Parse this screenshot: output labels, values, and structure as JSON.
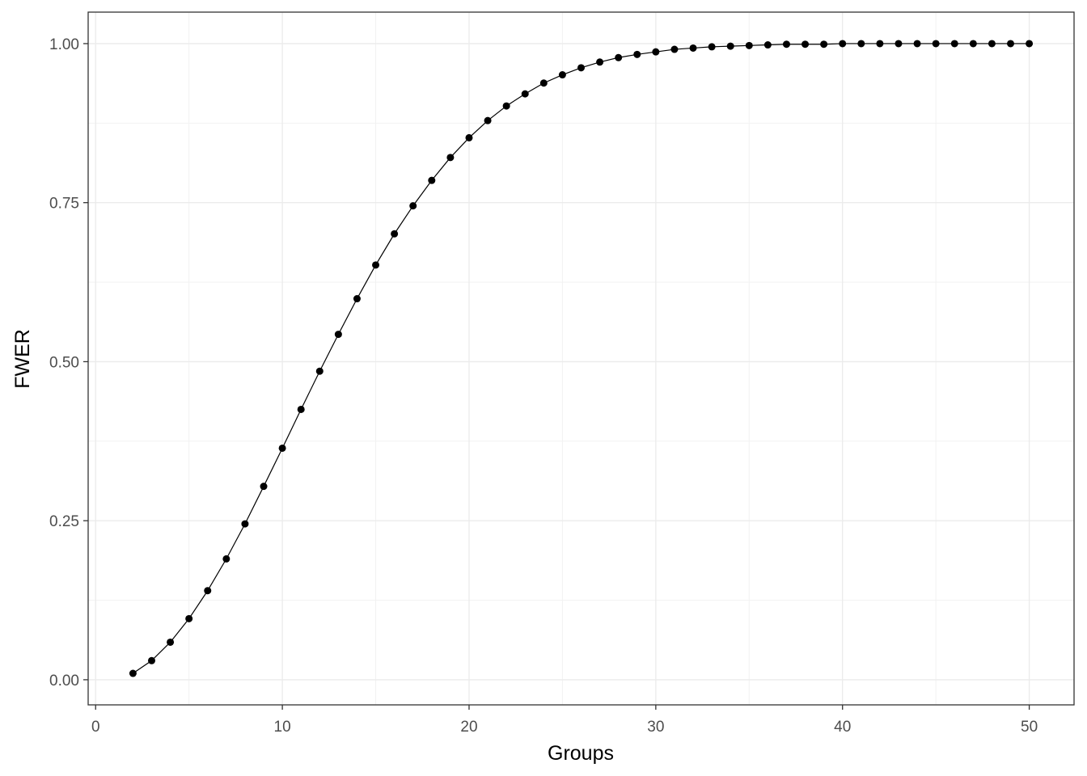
{
  "chart_data": {
    "type": "line",
    "x_label": "Groups",
    "y_label": "FWER",
    "x": [
      2,
      3,
      4,
      5,
      6,
      7,
      8,
      9,
      10,
      11,
      12,
      13,
      14,
      15,
      16,
      17,
      18,
      19,
      20,
      21,
      22,
      23,
      24,
      25,
      26,
      27,
      28,
      29,
      30,
      31,
      32,
      33,
      34,
      35,
      36,
      37,
      38,
      39,
      40,
      41,
      42,
      43,
      44,
      45,
      46,
      47,
      48,
      49,
      50
    ],
    "series": [
      {
        "name": "FWER",
        "color": "#000000",
        "values": [
          0.01,
          0.03,
          0.059,
          0.096,
          0.14,
          0.19,
          0.245,
          0.304,
          0.364,
          0.425,
          0.485,
          0.543,
          0.599,
          0.652,
          0.701,
          0.745,
          0.785,
          0.821,
          0.852,
          0.879,
          0.902,
          0.921,
          0.938,
          0.951,
          0.962,
          0.971,
          0.978,
          0.983,
          0.987,
          0.991,
          0.993,
          0.995,
          0.996,
          0.997,
          0.998,
          0.999,
          0.999,
          0.999,
          1.0,
          1.0,
          1.0,
          1.0,
          1.0,
          1.0,
          1.0,
          1.0,
          1.0,
          1.0,
          1.0
        ]
      }
    ],
    "xlim": [
      -0.4,
      52.4
    ],
    "ylim": [
      -0.0395,
      1.0495
    ],
    "xticks": [
      0,
      10,
      20,
      30,
      40,
      50
    ],
    "yticks": [
      {
        "value": 0,
        "label": "0.00"
      },
      {
        "value": 0.25,
        "label": "0.25"
      },
      {
        "value": 0.5,
        "label": "0.50"
      },
      {
        "value": 0.75,
        "label": "0.75"
      },
      {
        "value": 1,
        "label": "1.00"
      }
    ],
    "x_minor_grid": [
      5,
      15,
      25,
      35,
      45
    ],
    "y_minor_grid": [
      0.125,
      0.375,
      0.625,
      0.875
    ],
    "grid": true,
    "markers": true
  }
}
